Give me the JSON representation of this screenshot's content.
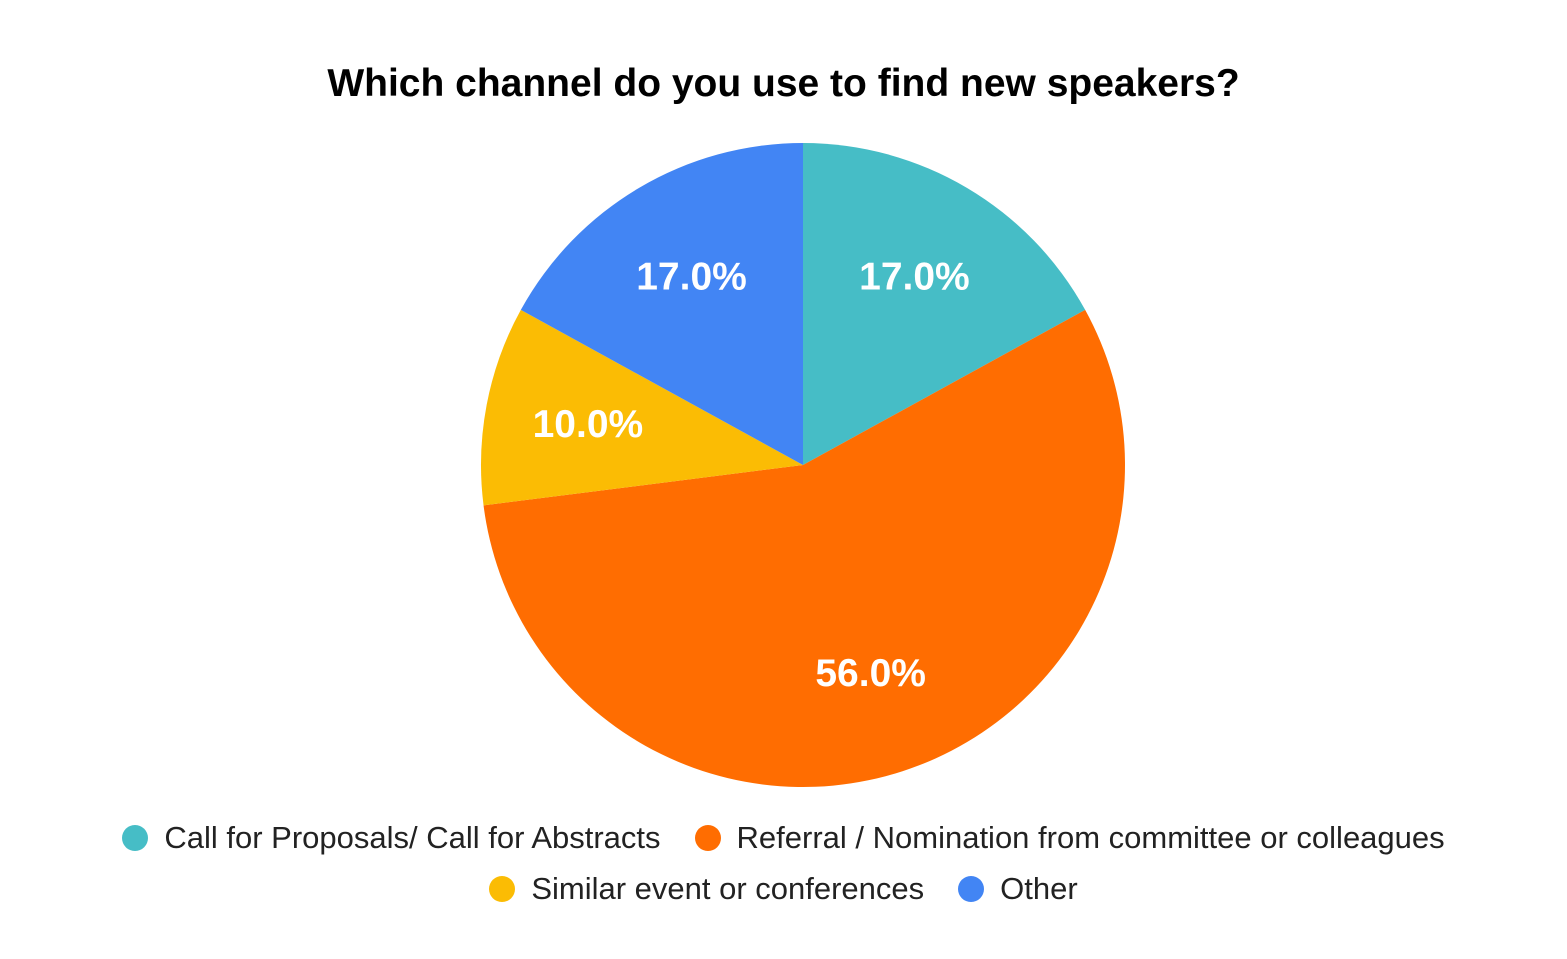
{
  "chart_data": {
    "type": "pie",
    "title": "Which channel do you use to find new speakers?",
    "slices": [
      {
        "name": "Call for Proposals/ Call for Abstracts",
        "value": 17.0,
        "label": "17.0%",
        "color": "#46BDC6"
      },
      {
        "name": "Referral / Nomination from committee or colleagues",
        "value": 56.0,
        "label": "56.0%",
        "color": "#FF6D01"
      },
      {
        "name": "Similar event or conferences",
        "value": 10.0,
        "label": "10.0%",
        "color": "#FBBC04"
      },
      {
        "name": "Other",
        "value": 17.0,
        "label": "17.0%",
        "color": "#4285F4"
      }
    ],
    "start_angle": "top",
    "direction": "clockwise",
    "legend_position": "bottom"
  }
}
